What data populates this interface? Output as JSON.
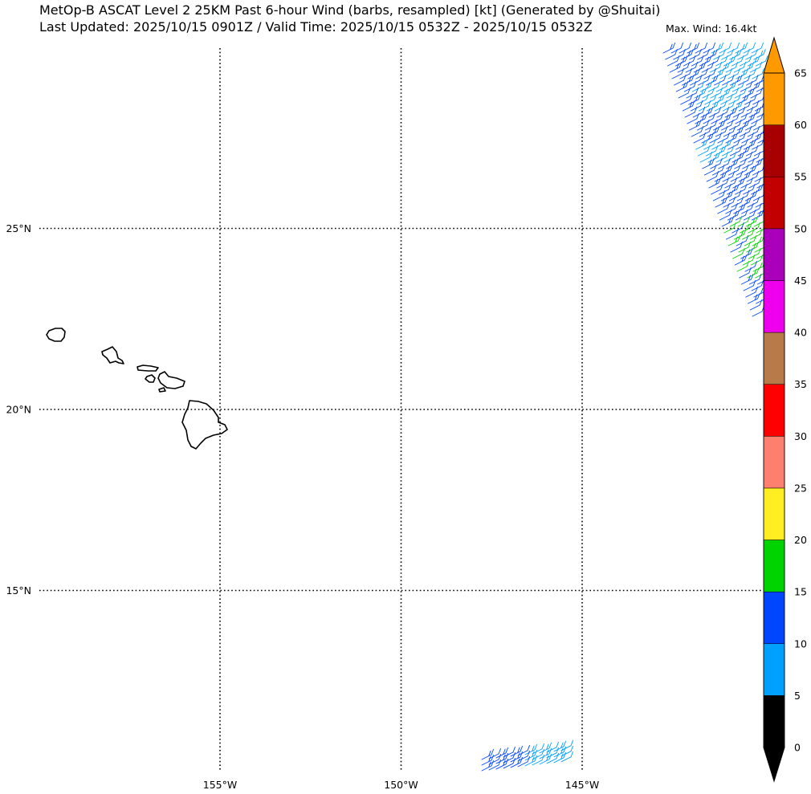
{
  "header": {
    "title_line1": "MetOp-B ASCAT Level 2 25KM Past 6-hour Wind (barbs, resampled) [kt] (Generated by @Shuitai)",
    "title_line2": "Last Updated: 2025/10/15 0901Z / Valid Time: 2025/10/15 0532Z - 2025/10/15 0532Z",
    "max_wind": "Max. Wind: 16.4kt"
  },
  "map": {
    "lon_range": [
      -160,
      -139
    ],
    "lat_range": [
      10,
      30
    ],
    "lon_lines": [
      -155,
      -150,
      -145
    ],
    "lat_lines": [
      25,
      20,
      15
    ],
    "lon_labels": [
      "155°W",
      "150°W",
      "145°W"
    ],
    "lat_labels": [
      "25°N",
      "20°N",
      "15°N"
    ],
    "coastline_color": "#000000",
    "gridline_style": "dotted"
  },
  "colorbar": {
    "bounds": [
      "0",
      "5",
      "10",
      "15",
      "20",
      "25",
      "30",
      "35",
      "40",
      "45",
      "50",
      "55",
      "60",
      "65"
    ],
    "colors": [
      "#000000",
      "#00a0ff",
      "#0046ff",
      "#00d400",
      "#ffee22",
      "#ff7f6e",
      "#ff0000",
      "#b97a4a",
      "#ee00ee",
      "#aa00bb",
      "#c30000",
      "#a80000",
      "#ff9900"
    ],
    "extend": "both",
    "under_color": "#000000",
    "over_color": "#ff9900"
  },
  "wind_barbs": {
    "swaths": [
      {
        "region": "north-east swath",
        "lat_range": [
          22.7,
          30
        ],
        "dominant_colors": [
          "#0046ff",
          "#00a0ff",
          "#00d400"
        ]
      },
      {
        "region": "south swath",
        "lat_range": [
          10,
          10.5
        ],
        "dominant_colors": [
          "#0046ff",
          "#00a0ff"
        ]
      }
    ]
  }
}
